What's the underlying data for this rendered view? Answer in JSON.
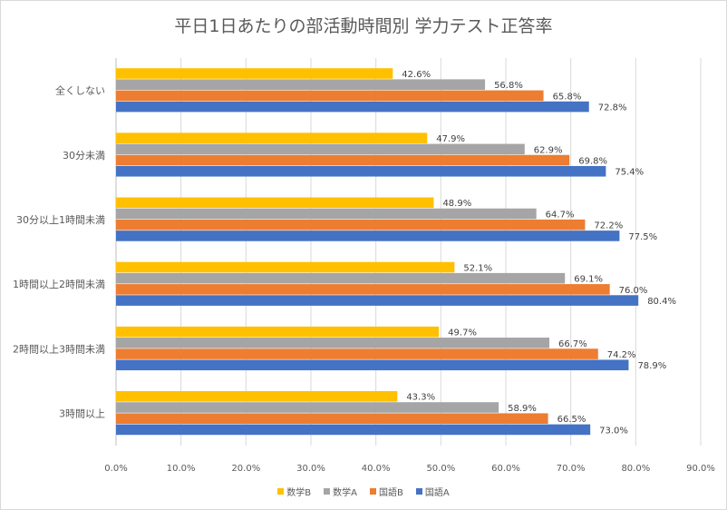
{
  "chart_data": {
    "type": "bar",
    "orientation": "horizontal",
    "title": "平日1日あたりの部活動時間別 学力テスト正答率",
    "categories": [
      "全くしない",
      "30分未満",
      "30分以上1時間未満",
      "1時間以上2時間未満",
      "2時間以上3時間未満",
      "3時間以上"
    ],
    "series": [
      {
        "name": "国語A",
        "color": "#4472C4",
        "values": [
          72.8,
          75.4,
          77.5,
          80.4,
          78.9,
          73.0
        ]
      },
      {
        "name": "国語B",
        "color": "#ED7D31",
        "values": [
          65.8,
          69.8,
          72.2,
          76.0,
          74.2,
          66.5
        ]
      },
      {
        "name": "数学A",
        "color": "#A5A5A5",
        "values": [
          56.8,
          62.9,
          64.7,
          69.1,
          66.7,
          58.9
        ]
      },
      {
        "name": "数学B",
        "color": "#FFC000",
        "values": [
          42.6,
          47.9,
          48.9,
          52.1,
          49.7,
          43.3
        ]
      }
    ],
    "xlim": [
      0,
      90
    ],
    "xticks": [
      0,
      10,
      20,
      30,
      40,
      50,
      60,
      70,
      80,
      90
    ],
    "tick_format": "0.0%",
    "grid": true,
    "legend_position": "bottom",
    "legend_order": [
      "数学B",
      "数学A",
      "国語B",
      "国語A"
    ]
  }
}
